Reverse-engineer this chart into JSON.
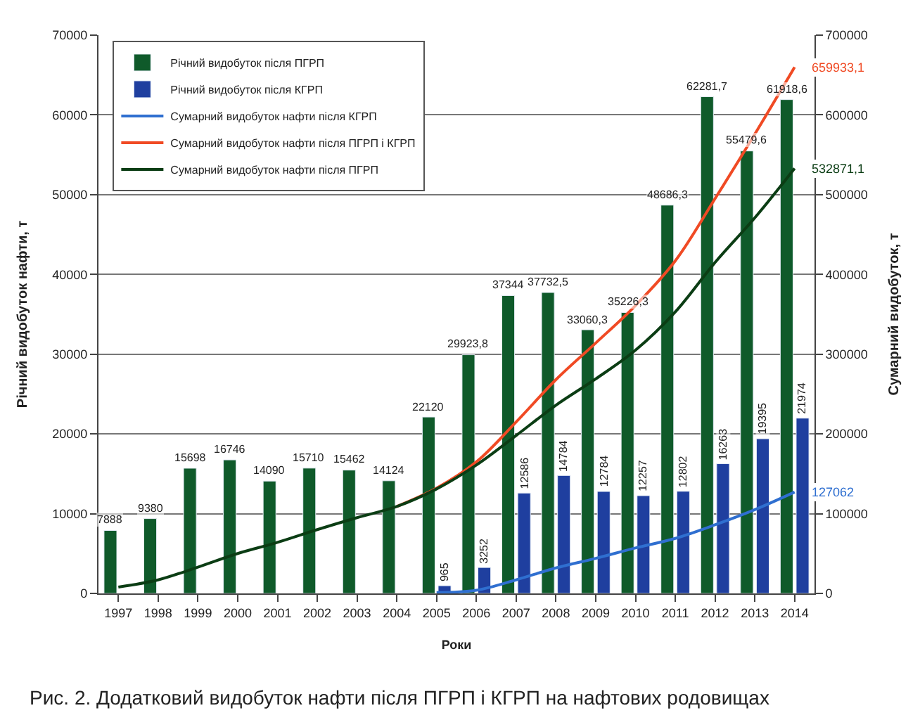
{
  "chart_data": {
    "type": "bar",
    "categories": [
      "1997",
      "1998",
      "1999",
      "2000",
      "2001",
      "2002",
      "2003",
      "2004",
      "2005",
      "2006",
      "2007",
      "2008",
      "2009",
      "2010",
      "2011",
      "2012",
      "2013",
      "2014"
    ],
    "xlabel": "Роки",
    "ylabel": "Річний видобуток нафти, т",
    "y2label": "Сумарний видобуток, т",
    "ylim": [
      0,
      70000
    ],
    "yticks": [
      0,
      10000,
      20000,
      30000,
      40000,
      50000,
      60000,
      70000
    ],
    "y2lim": [
      0,
      700000
    ],
    "y2ticks": [
      0,
      100000,
      200000,
      300000,
      400000,
      500000,
      600000,
      700000
    ],
    "grid": "y",
    "legend": "top left",
    "marker": "none",
    "line_style": "solid",
    "series": [
      {
        "name": "Річний видобуток після ПГРП",
        "color": "#0f5a2a",
        "values": [
          7888,
          9380,
          15698,
          16746,
          14090,
          15710,
          15462,
          14124,
          22120,
          29923.8,
          37344,
          37732.5,
          33060.3,
          35226.3,
          48686.3,
          62281.7,
          55479.6,
          61918.6
        ],
        "value_labels": [
          "7888",
          "9380",
          "15698",
          "16746",
          "14090",
          "15710",
          "15462",
          "14124",
          "22120",
          "29923,8",
          "37344",
          "37732,5",
          "33060,3",
          "35226,3",
          "48686,3",
          "62281,7",
          "55479,6",
          "61918,6"
        ]
      },
      {
        "name": "Річний видобуток після КГРП",
        "color": "#1f3f9f",
        "values": [
          null,
          null,
          null,
          null,
          null,
          null,
          null,
          null,
          965,
          3252,
          12586,
          14784,
          12784,
          12257,
          12802,
          16263,
          19395,
          21974
        ],
        "value_labels": [
          null,
          null,
          null,
          null,
          null,
          null,
          null,
          null,
          "965",
          "3252",
          "12586",
          "14784",
          "12784",
          "12257",
          "12802",
          "16263",
          "19395",
          "21974"
        ]
      },
      {
        "name": "Сумарний видобуток нафти після КГРП",
        "type": "line",
        "axis": "y2",
        "color": "#2f6fd0",
        "values": [
          null,
          null,
          null,
          null,
          null,
          null,
          null,
          null,
          1000,
          4000,
          17000,
          32000,
          44000,
          57000,
          69000,
          86000,
          105000,
          127062
        ],
        "value_labels": [
          null,
          null,
          null,
          null,
          null,
          null,
          null,
          null,
          null,
          null,
          null,
          null,
          null,
          null,
          null,
          null,
          null,
          "127062"
        ]
      },
      {
        "name": "Сумарний видобуток нафти після ПГРП і КГРП",
        "type": "line",
        "axis": "y2",
        "color": "#f04a24",
        "values": [
          null,
          null,
          null,
          null,
          null,
          null,
          null,
          109000,
          132000,
          165000,
          215000,
          268000,
          314000,
          361000,
          417000,
          495000,
          576000,
          659933.1
        ],
        "value_labels": [
          null,
          null,
          null,
          null,
          null,
          null,
          null,
          null,
          null,
          null,
          null,
          null,
          null,
          null,
          null,
          null,
          null,
          "659933,1"
        ]
      },
      {
        "name": "Сумарний видобуток нафти після ПГРП",
        "type": "line",
        "axis": "y2",
        "color": "#0b3d14",
        "values": [
          8000,
          17000,
          33000,
          50000,
          64000,
          80000,
          95000,
          109000,
          131000,
          161000,
          198000,
          236000,
          269000,
          305000,
          353000,
          415000,
          471000,
          532871.1
        ],
        "value_labels": [
          null,
          null,
          null,
          null,
          null,
          null,
          null,
          null,
          null,
          null,
          null,
          null,
          null,
          null,
          null,
          null,
          null,
          "532871,1"
        ]
      }
    ],
    "annotations": [
      "Рис. 2. Додатковий видобуток нафти після ПГРП і КГРП на нафтових родовищах"
    ]
  }
}
